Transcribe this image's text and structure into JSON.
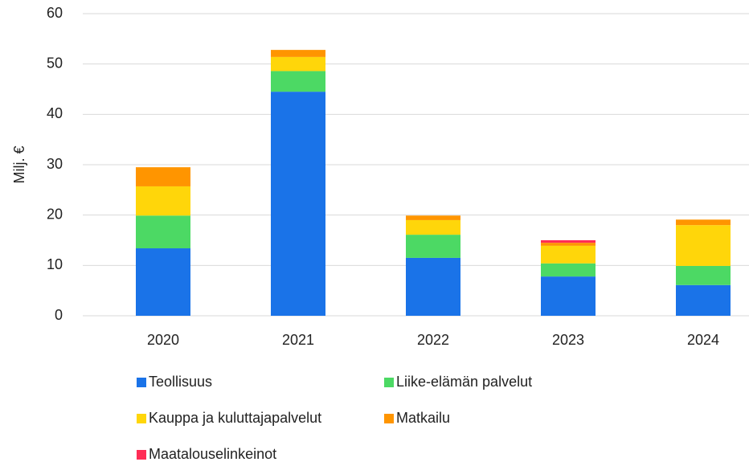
{
  "chart_data": {
    "type": "stacked_bar",
    "ylabel": "Milj. €",
    "categories": [
      "2020",
      "2021",
      "2022",
      "2023",
      "2024"
    ],
    "series": [
      {
        "name": "Teollisuus",
        "color": "#1a73e8",
        "values": [
          13.4,
          44.5,
          11.5,
          7.8,
          6.1
        ]
      },
      {
        "name": "Liike-elämän palvelut",
        "color": "#4cd964",
        "values": [
          6.5,
          4.1,
          4.6,
          2.6,
          3.8
        ]
      },
      {
        "name": "Kauppa ja kuluttajapalvelut",
        "color": "#ffd60a",
        "values": [
          5.8,
          2.8,
          2.9,
          3.5,
          8.1
        ]
      },
      {
        "name": "Matkailu",
        "color": "#ff9500",
        "values": [
          3.8,
          1.4,
          0.9,
          0.6,
          1.1
        ]
      },
      {
        "name": "Maatalouselinkeinot",
        "color": "#ff2d55",
        "values": [
          0,
          0,
          0,
          0.5,
          0
        ]
      }
    ],
    "ylim": [
      0,
      60
    ],
    "yticks": [
      0,
      10,
      20,
      30,
      40,
      50,
      60
    ],
    "grid": true
  }
}
